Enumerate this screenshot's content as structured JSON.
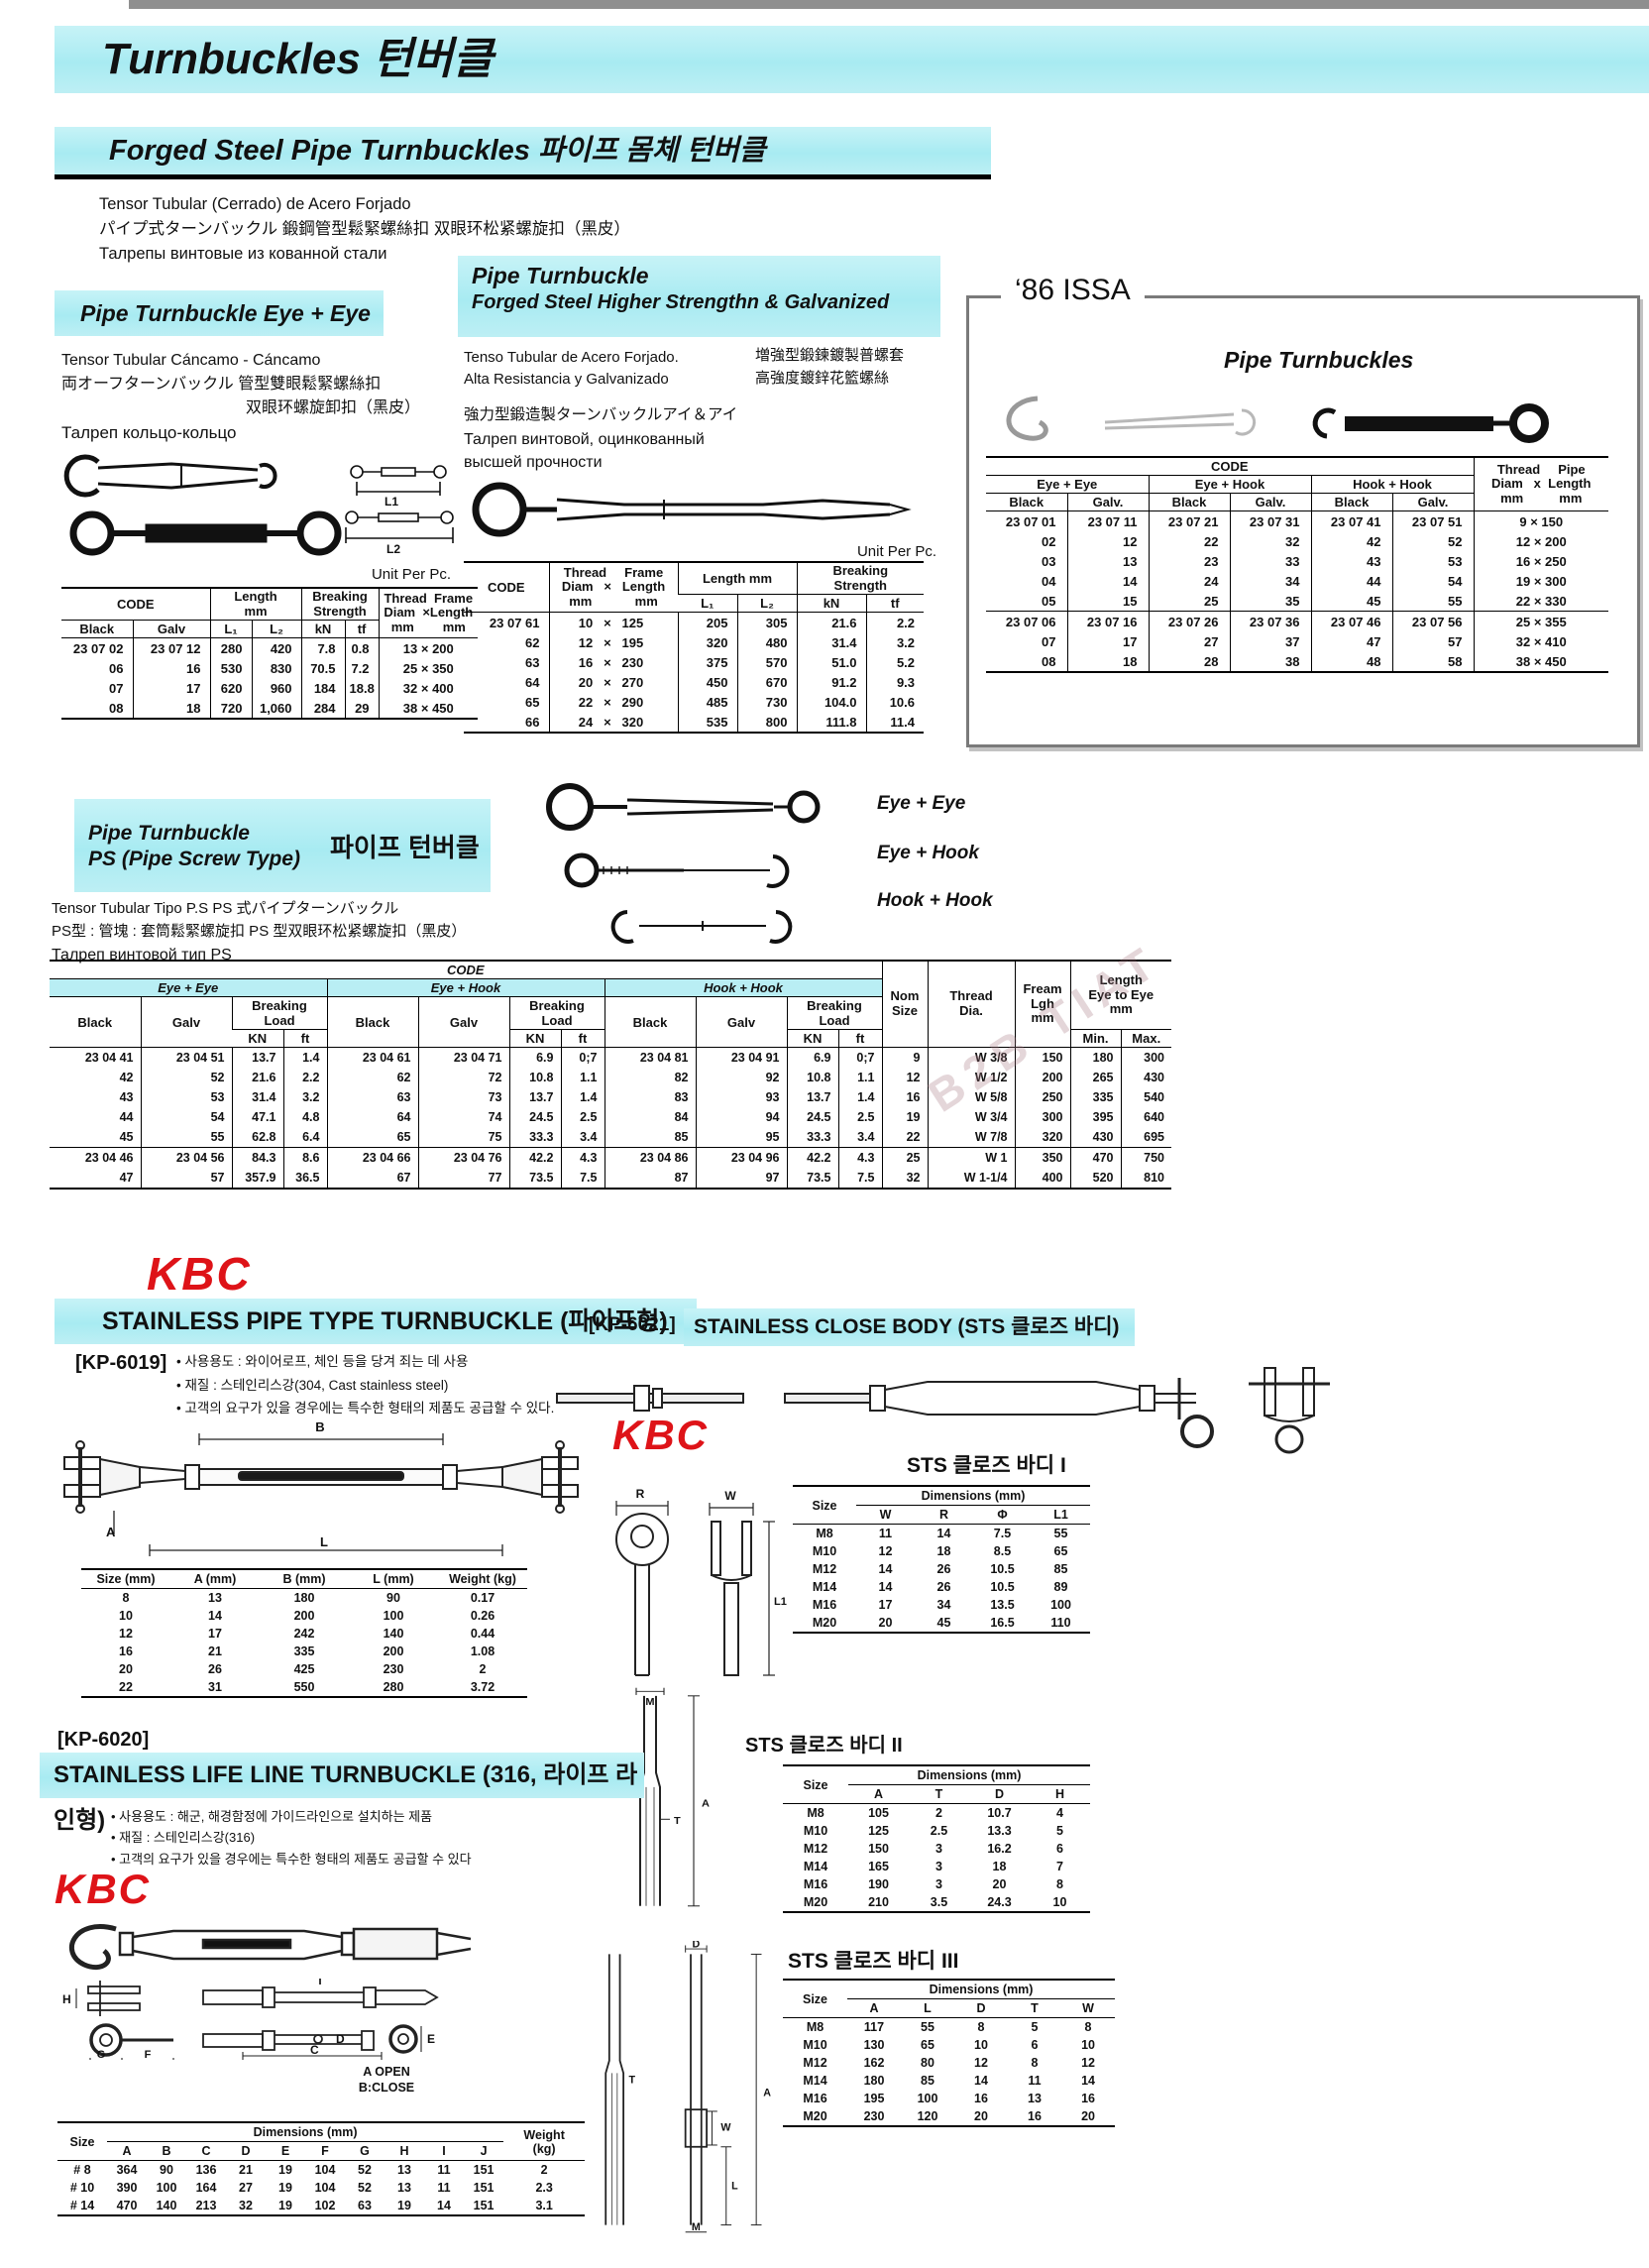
{
  "page": {
    "title": "Turnbuckles  턴버클",
    "watermark": "B2B TIAT"
  },
  "section_forged": {
    "title": "Forged Steel Pipe Turnbuckles  파이프 몸체 턴버클"
  },
  "intro": {
    "line1": "Tensor Tubular (Cerrado) de Acero Forjado",
    "line2": "パイプ式ターンバックル      鍛鋼管型鬆緊螺絲扣  双眼环松紧螺旋扣（黑皮）",
    "line3": "Талрепы винтовые из кованной стали"
  },
  "left": {
    "header": "Pipe Turnbuckle  Eye + Eye",
    "line1": "Tensor Tubular Cáncamo - Cáncamo",
    "line2": "両オーフターンバックル      管型雙眼鬆緊螺絲扣",
    "line3": "双眼环螺旋卸扣（黑皮）",
    "line4": "Талреп кольцо-кольцо",
    "unit": "Unit Per Pc.",
    "table": {
      "code": "CODE",
      "black": "Black",
      "galv": "Galv",
      "length": "Length\nmm",
      "breaking": "Breaking\nStrength",
      "thread": "Thread  Frame\nDiam  ×Length\nmm        mm",
      "l1": "L₁",
      "l2": "L₂",
      "kn": "kN",
      "tf": "tf",
      "rows": [
        [
          "23 07 02",
          "23 07 12",
          "280",
          "420",
          "7.8",
          "0.8",
          "13 × 200"
        ],
        [
          "06",
          "16",
          "530",
          "830",
          "70.5",
          "7.2",
          "25 × 350"
        ],
        [
          "07",
          "17",
          "620",
          "960",
          "184",
          "18.8",
          "32 × 400"
        ],
        [
          "08",
          "18",
          "720",
          "1,060",
          "284",
          "29",
          "38 × 450"
        ]
      ]
    }
  },
  "mid": {
    "header1": "Pipe Turnbuckle",
    "header2": "Forged Steel Higher Strengthn & Galvanized",
    "line1": "Tenso Tubular de Acero Forjado.",
    "line2": "Alta Resistancia y Galvanizado",
    "cjk1": "増強型鍛鍊鍍製普螺套",
    "cjk2": "高強度鍍鋅花籃螺絲",
    "line3": "強力型鍛造製ターンバックルアイ＆アイ",
    "line4": "Талреп винтовой, оцинкованный",
    "line5": "высшей прочности",
    "unit": "Unit Per Pc.",
    "table": {
      "code": "CODE",
      "thread": "Thread     Frame\nDiam   ×   Length\nmm            mm",
      "length": "Length mm",
      "breaking": "Breaking\nStrength",
      "l1": "L₁",
      "l2": "L₂",
      "kn": "kN",
      "tf": "tf",
      "rows": [
        [
          "23 07 61",
          "10   ×   125",
          "205",
          "305",
          "21.6",
          "2.2"
        ],
        [
          "62",
          "12   ×   195",
          "320",
          "480",
          "31.4",
          "3.2"
        ],
        [
          "63",
          "16   ×   230",
          "375",
          "570",
          "51.0",
          "5.2"
        ],
        [
          "64",
          "20   ×   270",
          "450",
          "670",
          "91.2",
          "9.3"
        ],
        [
          "65",
          "22   ×   290",
          "485",
          "730",
          "104.0",
          "10.6"
        ],
        [
          "66",
          "24   ×   320",
          "535",
          "800",
          "111.8",
          "11.4"
        ]
      ]
    }
  },
  "issa": {
    "badge": "‘86 ISSA",
    "title": "Pipe Turnbuckles",
    "table": {
      "code": "CODE",
      "ee": "Eye + Eye",
      "eh": "Eye + Hook",
      "hh": "Hook + Hook",
      "black": "Black",
      "galv": "Galv.",
      "thread": "Thread     Pipe\nDiam   x  Length\nmm          mm",
      "rows1": [
        [
          "23 07 01",
          "23 07 11",
          "23 07 21",
          "23 07 31",
          "23 07 41",
          "23 07 51",
          "9  ×  150"
        ],
        [
          "02",
          "12",
          "22",
          "32",
          "42",
          "52",
          "12  ×  200"
        ],
        [
          "03",
          "13",
          "23",
          "33",
          "43",
          "53",
          "16  ×  250"
        ],
        [
          "04",
          "14",
          "24",
          "34",
          "44",
          "54",
          "19  ×  300"
        ],
        [
          "05",
          "15",
          "25",
          "35",
          "45",
          "55",
          "22  ×  330"
        ]
      ],
      "rows2": [
        [
          "23 07 06",
          "23 07 16",
          "23 07 26",
          "23 07 36",
          "23 07 46",
          "23 07 56",
          "25  ×  355"
        ],
        [
          "07",
          "17",
          "27",
          "37",
          "47",
          "57",
          "32  ×  410"
        ],
        [
          "08",
          "18",
          "28",
          "38",
          "48",
          "58",
          "38  ×  450"
        ]
      ]
    }
  },
  "ps": {
    "title1": "Pipe Turnbuckle",
    "title2": "PS (Pipe Screw Type)",
    "title_kr": "파이프 턴버클",
    "line1": "Tensor Tubular Tipo P.S   PS 式パイプターンバックル",
    "line2": "PS型 : 管塊 : 套筒鬆緊螺旋扣  PS 型双眼环松紧螺旋扣（黑皮）",
    "line3": "Талреп винтовой тип PS",
    "label_ee": "Eye + Eye",
    "label_eh": "Eye + Hook",
    "label_hh": "Hook + Hook",
    "table": {
      "code": "CODE",
      "ee": "Eye + Eye",
      "eh": "Eye + Hook",
      "hh": "Hook + Hook",
      "black": "Black",
      "galv": "Galv",
      "bl": "Breaking Load",
      "kn": "KN",
      "ft": "ft",
      "nom": "Nom\nSize",
      "thread": "Thread\nDia.",
      "fream": "Fream\nLgh\nmm",
      "len": "Length\nEye to Eye\nmm",
      "min": "Min.",
      "max": "Max.",
      "rows1": [
        [
          "23 04 41",
          "23 04 51",
          "13.7",
          "1.4",
          "23 04 61",
          "23 04 71",
          "6.9",
          "0;7",
          "23 04 81",
          "23 04 91",
          "6.9",
          "0;7",
          "9",
          "W 3/8",
          "150",
          "180",
          "300"
        ],
        [
          "42",
          "52",
          "21.6",
          "2.2",
          "62",
          "72",
          "10.8",
          "1.1",
          "82",
          "92",
          "10.8",
          "1.1",
          "12",
          "W 1/2",
          "200",
          "265",
          "430"
        ],
        [
          "43",
          "53",
          "31.4",
          "3.2",
          "63",
          "73",
          "13.7",
          "1.4",
          "83",
          "93",
          "13.7",
          "1.4",
          "16",
          "W 5/8",
          "250",
          "335",
          "540"
        ],
        [
          "44",
          "54",
          "47.1",
          "4.8",
          "64",
          "74",
          "24.5",
          "2.5",
          "84",
          "94",
          "24.5",
          "2.5",
          "19",
          "W 3/4",
          "300",
          "395",
          "640"
        ],
        [
          "45",
          "55",
          "62.8",
          "6.4",
          "65",
          "75",
          "33.3",
          "3.4",
          "85",
          "95",
          "33.3",
          "3.4",
          "22",
          "W 7/8",
          "320",
          "430",
          "695"
        ]
      ],
      "rows2": [
        [
          "23 04 46",
          "23 04 56",
          "84.3",
          "8.6",
          "23 04 66",
          "23 04 76",
          "42.2",
          "4.3",
          "23 04 86",
          "23 04 96",
          "42.2",
          "4.3",
          "25",
          "W 1",
          "350",
          "470",
          "750"
        ],
        [
          "47",
          "57",
          "357.9",
          "36.5",
          "67",
          "77",
          "73.5",
          "7.5",
          "87",
          "97",
          "73.5",
          "7.5",
          "32",
          "W 1-1/4",
          "400",
          "520",
          "810"
        ]
      ]
    }
  },
  "kbc": {
    "logo": "KBC"
  },
  "kp6019": {
    "code": "[KP-6019]",
    "band": "STAINLESS PIPE TYPE TURNBUCKLE (파이프형)",
    "bullets": [
      "• 사용용도 : 와이어로프, 체인 등을 당겨 죄는 데 사용",
      "• 재질 : 스테인리스강(304, Cast stainless steel)",
      "• 고객의 요구가 있을 경우에는 특수한 형태의 제품도 공급할 수 있다."
    ],
    "table": {
      "headers": [
        "Size (mm)",
        "A (mm)",
        "B (mm)",
        "L (mm)",
        "Weight (kg)"
      ],
      "rows": [
        [
          "8",
          "13",
          "180",
          "90",
          "0.17"
        ],
        [
          "10",
          "14",
          "200",
          "100",
          "0.26"
        ],
        [
          "12",
          "17",
          "242",
          "140",
          "0.44"
        ],
        [
          "16",
          "21",
          "335",
          "200",
          "1.08"
        ],
        [
          "20",
          "26",
          "425",
          "230",
          "2"
        ],
        [
          "22",
          "31",
          "550",
          "280",
          "3.72"
        ]
      ]
    }
  },
  "kp6021": {
    "code": "[KP-6021]",
    "band": "STAINLESS CLOSE BODY (STS 클로즈 바디)",
    "sts1": {
      "title": "STS 클로즈 바디 I",
      "size": "Size",
      "dim": "Dimensions (mm)",
      "cols": [
        "W",
        "R",
        "Φ",
        "L1"
      ],
      "rows": [
        [
          "M8",
          "11",
          "14",
          "7.5",
          "55"
        ],
        [
          "M10",
          "12",
          "18",
          "8.5",
          "65"
        ],
        [
          "M12",
          "14",
          "26",
          "10.5",
          "85"
        ],
        [
          "M14",
          "14",
          "26",
          "10.5",
          "89"
        ],
        [
          "M16",
          "17",
          "34",
          "13.5",
          "100"
        ],
        [
          "M20",
          "20",
          "45",
          "16.5",
          "110"
        ]
      ]
    },
    "sts2": {
      "title": "STS 클로즈 바디 II",
      "size": "Size",
      "dim": "Dimensions (mm)",
      "cols": [
        "A",
        "T",
        "D",
        "H"
      ],
      "rows": [
        [
          "M8",
          "105",
          "2",
          "10.7",
          "4"
        ],
        [
          "M10",
          "125",
          "2.5",
          "13.3",
          "5"
        ],
        [
          "M12",
          "150",
          "3",
          "16.2",
          "6"
        ],
        [
          "M14",
          "165",
          "3",
          "18",
          "7"
        ],
        [
          "M16",
          "190",
          "3",
          "20",
          "8"
        ],
        [
          "M20",
          "210",
          "3.5",
          "24.3",
          "10"
        ]
      ]
    },
    "sts3": {
      "title": "STS 클로즈 바디 III",
      "size": "Size",
      "dim": "Dimensions (mm)",
      "cols": [
        "A",
        "L",
        "D",
        "T",
        "W"
      ],
      "rows": [
        [
          "M8",
          "117",
          "55",
          "8",
          "5",
          "8"
        ],
        [
          "M10",
          "130",
          "65",
          "10",
          "6",
          "10"
        ],
        [
          "M12",
          "162",
          "80",
          "12",
          "8",
          "12"
        ],
        [
          "M14",
          "180",
          "85",
          "14",
          "11",
          "14"
        ],
        [
          "M16",
          "195",
          "100",
          "16",
          "13",
          "16"
        ],
        [
          "M20",
          "230",
          "120",
          "20",
          "16",
          "20"
        ]
      ]
    }
  },
  "kp6020": {
    "code": "[KP-6020]",
    "band": "STAINLESS LIFE LINE TURNBUCKLE (316, 라이프 라인형)",
    "bullets": [
      "• 사용용도 : 해군, 해경함정에 가이드라인으로 설치하는 제품",
      "• 재질 : 스테인리스강(316)",
      "• 고객의 요구가 있을 경우에는 특수한 형태의 제품도 공급할 수 있다"
    ],
    "open_label": "A OPEN",
    "close_label": "B:CLOSE",
    "table": {
      "size": "Size",
      "dim": "Dimensions (mm)",
      "weight": "Weight\n(kg)",
      "cols": [
        "A",
        "B",
        "C",
        "D",
        "E",
        "F",
        "G",
        "H",
        "I",
        "J"
      ],
      "rows": [
        [
          "# 8",
          "364",
          "90",
          "136",
          "21",
          "19",
          "104",
          "52",
          "13",
          "11",
          "151",
          "2"
        ],
        [
          "# 10",
          "390",
          "100",
          "164",
          "27",
          "19",
          "104",
          "52",
          "13",
          "11",
          "151",
          "2.3"
        ],
        [
          "# 14",
          "470",
          "140",
          "213",
          "32",
          "19",
          "102",
          "63",
          "19",
          "14",
          "151",
          "3.1"
        ]
      ]
    }
  },
  "diagrams": {
    "l1": "L1",
    "l2": "L2",
    "r": "R",
    "w": "W",
    "a": "A",
    "b": "B",
    "l": "L",
    "m": "M",
    "t": "T",
    "d": "D",
    "h": "H",
    "g": "G",
    "f": "F",
    "c": "C",
    "e": "E",
    "l1b": "L1"
  }
}
